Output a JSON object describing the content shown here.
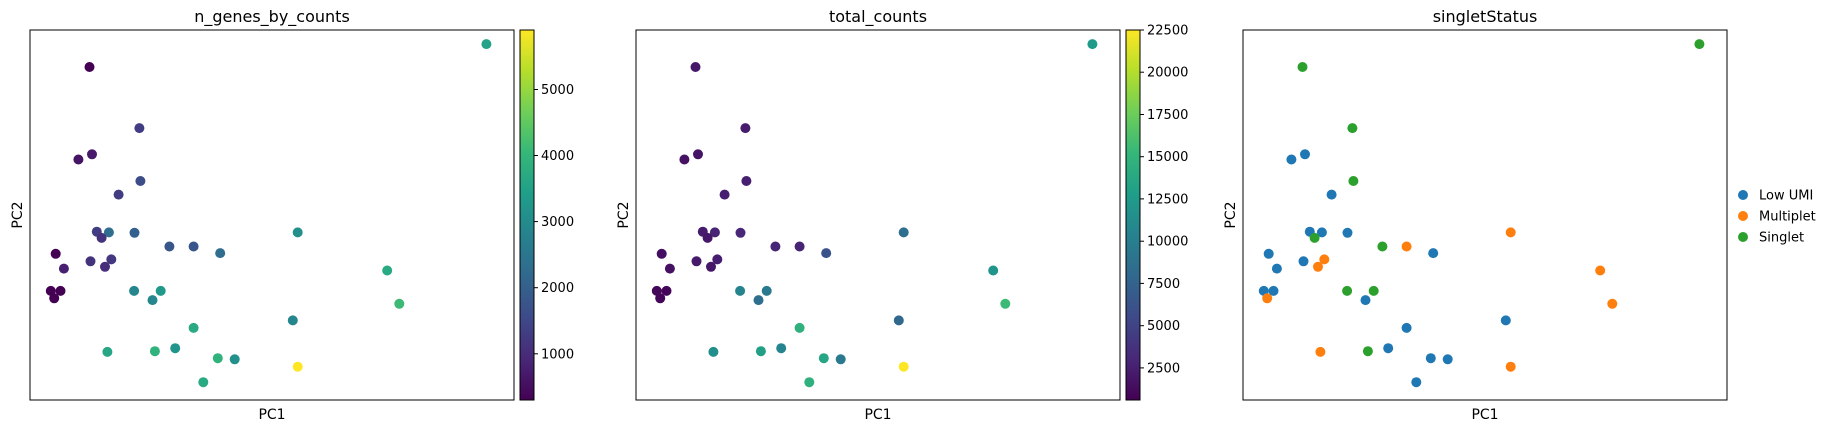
{
  "colors": {
    "viridis": [
      "#440154",
      "#482878",
      "#3e4a89",
      "#31688e",
      "#26828e",
      "#1f9e89",
      "#35b779",
      "#6ece58",
      "#b5de2b",
      "#fde725"
    ],
    "categories": {
      "Low UMI": "#1f77b4",
      "Multiplet": "#ff7f0e",
      "Singlet": "#2ca02c"
    }
  },
  "chart_data": [
    {
      "type": "scatter",
      "title": "n_genes_by_counts",
      "xlabel": "PC1",
      "ylabel": "PC2",
      "xlim": [
        0,
        100
      ],
      "ylim": [
        0,
        100
      ],
      "colorbar": {
        "range": [
          300,
          5900
        ],
        "ticks": [
          "1000",
          "2000",
          "3000",
          "4000",
          "5000"
        ],
        "tick_values": [
          1000,
          2000,
          3000,
          4000,
          5000
        ]
      },
      "points": [
        {
          "x": 94.3,
          "y": 96.2,
          "c": 3500
        },
        {
          "x": 12.3,
          "y": 90.0,
          "c": 300
        },
        {
          "x": 22.6,
          "y": 73.5,
          "c": 1300
        },
        {
          "x": 10.0,
          "y": 65.0,
          "c": 600
        },
        {
          "x": 12.8,
          "y": 66.4,
          "c": 700
        },
        {
          "x": 22.8,
          "y": 59.2,
          "c": 1600
        },
        {
          "x": 18.3,
          "y": 55.5,
          "c": 1300
        },
        {
          "x": 13.8,
          "y": 45.5,
          "c": 1300
        },
        {
          "x": 16.3,
          "y": 45.3,
          "c": 2300
        },
        {
          "x": 14.8,
          "y": 43.8,
          "c": 1100
        },
        {
          "x": 21.6,
          "y": 45.2,
          "c": 2000
        },
        {
          "x": 28.8,
          "y": 41.5,
          "c": 1800
        },
        {
          "x": 33.8,
          "y": 41.5,
          "c": 1800
        },
        {
          "x": 39.3,
          "y": 39.7,
          "c": 2300
        },
        {
          "x": 55.3,
          "y": 45.3,
          "c": 3100
        },
        {
          "x": 5.3,
          "y": 39.5,
          "c": 300
        },
        {
          "x": 12.5,
          "y": 37.5,
          "c": 1100
        },
        {
          "x": 16.8,
          "y": 38.0,
          "c": 1200
        },
        {
          "x": 7.0,
          "y": 35.5,
          "c": 800
        },
        {
          "x": 15.5,
          "y": 36.0,
          "c": 1000
        },
        {
          "x": 4.3,
          "y": 29.5,
          "c": 300
        },
        {
          "x": 6.3,
          "y": 29.5,
          "c": 300
        },
        {
          "x": 5.0,
          "y": 27.5,
          "c": 300
        },
        {
          "x": 21.5,
          "y": 29.5,
          "c": 2900
        },
        {
          "x": 27.0,
          "y": 29.5,
          "c": 3300
        },
        {
          "x": 25.3,
          "y": 27.0,
          "c": 2900
        },
        {
          "x": 73.8,
          "y": 35.0,
          "c": 3700
        },
        {
          "x": 76.3,
          "y": 26.0,
          "c": 4100
        },
        {
          "x": 54.3,
          "y": 21.5,
          "c": 2900
        },
        {
          "x": 33.8,
          "y": 19.5,
          "c": 3700
        },
        {
          "x": 16.0,
          "y": 13.0,
          "c": 3600
        },
        {
          "x": 25.8,
          "y": 13.2,
          "c": 3900
        },
        {
          "x": 30.0,
          "y": 14.0,
          "c": 3200
        },
        {
          "x": 38.8,
          "y": 11.3,
          "c": 3900
        },
        {
          "x": 42.3,
          "y": 11.0,
          "c": 3100
        },
        {
          "x": 35.8,
          "y": 4.8,
          "c": 3700
        },
        {
          "x": 55.3,
          "y": 9.0,
          "c": 5900
        }
      ]
    },
    {
      "type": "scatter",
      "title": "total_counts",
      "xlabel": "PC1",
      "ylabel": "PC2",
      "xlim": [
        0,
        100
      ],
      "ylim": [
        0,
        100
      ],
      "colorbar": {
        "range": [
          600,
          22500
        ],
        "ticks": [
          "2500",
          "5000",
          "7500",
          "10000",
          "12500",
          "15000",
          "17500",
          "20000",
          "22500"
        ],
        "tick_values": [
          2500,
          5000,
          7500,
          10000,
          12500,
          15000,
          17500,
          20000,
          22500
        ]
      },
      "points": [
        {
          "x": 94.3,
          "y": 96.2,
          "c": 12500
        },
        {
          "x": 12.3,
          "y": 90.0,
          "c": 2000
        },
        {
          "x": 22.6,
          "y": 73.5,
          "c": 2300
        },
        {
          "x": 10.0,
          "y": 65.0,
          "c": 1700
        },
        {
          "x": 12.8,
          "y": 66.4,
          "c": 1800
        },
        {
          "x": 22.8,
          "y": 59.2,
          "c": 2500
        },
        {
          "x": 18.3,
          "y": 55.5,
          "c": 2500
        },
        {
          "x": 13.8,
          "y": 45.5,
          "c": 2200
        },
        {
          "x": 16.3,
          "y": 45.3,
          "c": 2800
        },
        {
          "x": 14.8,
          "y": 43.8,
          "c": 2000
        },
        {
          "x": 21.6,
          "y": 45.2,
          "c": 3000
        },
        {
          "x": 28.8,
          "y": 41.5,
          "c": 2900
        },
        {
          "x": 33.8,
          "y": 41.5,
          "c": 2800
        },
        {
          "x": 39.3,
          "y": 39.7,
          "c": 6000
        },
        {
          "x": 55.3,
          "y": 45.3,
          "c": 8500
        },
        {
          "x": 5.3,
          "y": 39.5,
          "c": 1500
        },
        {
          "x": 12.5,
          "y": 37.5,
          "c": 2100
        },
        {
          "x": 16.8,
          "y": 38.0,
          "c": 2400
        },
        {
          "x": 7.0,
          "y": 35.5,
          "c": 1600
        },
        {
          "x": 15.5,
          "y": 36.0,
          "c": 1900
        },
        {
          "x": 4.3,
          "y": 29.5,
          "c": 900
        },
        {
          "x": 6.3,
          "y": 29.5,
          "c": 900
        },
        {
          "x": 5.0,
          "y": 27.5,
          "c": 900
        },
        {
          "x": 21.5,
          "y": 29.5,
          "c": 10500
        },
        {
          "x": 27.0,
          "y": 29.5,
          "c": 9500
        },
        {
          "x": 25.3,
          "y": 27.0,
          "c": 8500
        },
        {
          "x": 73.8,
          "y": 35.0,
          "c": 12000
        },
        {
          "x": 76.3,
          "y": 26.0,
          "c": 15500
        },
        {
          "x": 54.3,
          "y": 21.5,
          "c": 8000
        },
        {
          "x": 33.8,
          "y": 19.5,
          "c": 14500
        },
        {
          "x": 16.0,
          "y": 13.0,
          "c": 11500
        },
        {
          "x": 25.8,
          "y": 13.2,
          "c": 13000
        },
        {
          "x": 30.0,
          "y": 14.0,
          "c": 10500
        },
        {
          "x": 38.8,
          "y": 11.3,
          "c": 13500
        },
        {
          "x": 42.3,
          "y": 11.0,
          "c": 9500
        },
        {
          "x": 35.8,
          "y": 4.8,
          "c": 14500
        },
        {
          "x": 55.3,
          "y": 9.0,
          "c": 22500
        }
      ]
    },
    {
      "type": "scatter",
      "title": "singletStatus",
      "xlabel": "PC1",
      "ylabel": "PC2",
      "xlim": [
        0,
        100
      ],
      "ylim": [
        0,
        100
      ],
      "legend": {
        "position": "right",
        "entries": [
          "Low UMI",
          "Multiplet",
          "Singlet"
        ]
      },
      "points": [
        {
          "x": 94.3,
          "y": 96.2,
          "g": "Singlet"
        },
        {
          "x": 12.3,
          "y": 90.0,
          "g": "Singlet"
        },
        {
          "x": 22.6,
          "y": 73.5,
          "g": "Singlet"
        },
        {
          "x": 10.0,
          "y": 65.0,
          "g": "Low UMI"
        },
        {
          "x": 12.8,
          "y": 66.4,
          "g": "Low UMI"
        },
        {
          "x": 22.8,
          "y": 59.2,
          "g": "Singlet"
        },
        {
          "x": 18.3,
          "y": 55.5,
          "g": "Low UMI"
        },
        {
          "x": 13.8,
          "y": 45.5,
          "g": "Low UMI"
        },
        {
          "x": 16.3,
          "y": 45.3,
          "g": "Low UMI"
        },
        {
          "x": 14.8,
          "y": 43.8,
          "g": "Singlet"
        },
        {
          "x": 21.6,
          "y": 45.2,
          "g": "Low UMI"
        },
        {
          "x": 28.8,
          "y": 41.5,
          "g": "Singlet"
        },
        {
          "x": 33.8,
          "y": 41.5,
          "g": "Multiplet"
        },
        {
          "x": 39.3,
          "y": 39.7,
          "g": "Low UMI"
        },
        {
          "x": 55.3,
          "y": 45.3,
          "g": "Multiplet"
        },
        {
          "x": 5.3,
          "y": 39.5,
          "g": "Low UMI"
        },
        {
          "x": 12.5,
          "y": 37.5,
          "g": "Low UMI"
        },
        {
          "x": 16.8,
          "y": 38.0,
          "g": "Multiplet"
        },
        {
          "x": 7.0,
          "y": 35.5,
          "g": "Low UMI"
        },
        {
          "x": 15.5,
          "y": 36.0,
          "g": "Multiplet"
        },
        {
          "x": 4.3,
          "y": 29.5,
          "g": "Low UMI"
        },
        {
          "x": 6.3,
          "y": 29.5,
          "g": "Low UMI"
        },
        {
          "x": 5.0,
          "y": 27.5,
          "g": "Multiplet"
        },
        {
          "x": 21.5,
          "y": 29.5,
          "g": "Singlet"
        },
        {
          "x": 27.0,
          "y": 29.5,
          "g": "Singlet"
        },
        {
          "x": 25.3,
          "y": 27.0,
          "g": "Low UMI"
        },
        {
          "x": 73.8,
          "y": 35.0,
          "g": "Multiplet"
        },
        {
          "x": 76.3,
          "y": 26.0,
          "g": "Multiplet"
        },
        {
          "x": 54.3,
          "y": 21.5,
          "g": "Low UMI"
        },
        {
          "x": 33.8,
          "y": 19.5,
          "g": "Low UMI"
        },
        {
          "x": 16.0,
          "y": 13.0,
          "g": "Multiplet"
        },
        {
          "x": 25.8,
          "y": 13.2,
          "g": "Singlet"
        },
        {
          "x": 30.0,
          "y": 14.0,
          "g": "Low UMI"
        },
        {
          "x": 38.8,
          "y": 11.3,
          "g": "Low UMI"
        },
        {
          "x": 42.3,
          "y": 11.0,
          "g": "Low UMI"
        },
        {
          "x": 35.8,
          "y": 4.8,
          "g": "Low UMI"
        },
        {
          "x": 55.3,
          "y": 9.0,
          "g": "Multiplet"
        }
      ]
    }
  ]
}
